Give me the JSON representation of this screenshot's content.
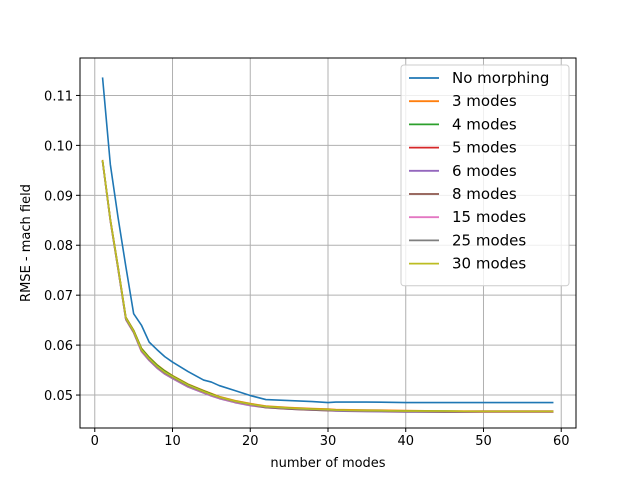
{
  "chart_data": {
    "type": "line",
    "xlabel": "number of modes",
    "ylabel": "RMSE - mach field",
    "xlim": [
      -1.9,
      61.9
    ],
    "ylim": [
      0.0434,
      0.1175
    ],
    "x_ticks": [
      0,
      10,
      20,
      30,
      40,
      50,
      60
    ],
    "y_ticks": [
      0.05,
      0.06,
      0.07,
      0.08,
      0.09,
      0.1,
      0.11
    ],
    "y_tick_labels": [
      "0.05",
      "0.06",
      "0.07",
      "0.08",
      "0.09",
      "0.10",
      "0.11"
    ],
    "grid": true,
    "legend_position": "top-right",
    "x": [
      1,
      2,
      3,
      4,
      5,
      6,
      7,
      8,
      9,
      10,
      12,
      14,
      15,
      16,
      18,
      20,
      22,
      25,
      28,
      30,
      31,
      35,
      40,
      45,
      50,
      55,
      59
    ],
    "series": [
      {
        "name": "No morphing",
        "color": "#1f77b4",
        "values": [
          0.1136,
          0.0962,
          0.0855,
          0.0757,
          0.0663,
          0.064,
          0.0606,
          0.0591,
          0.0577,
          0.0566,
          0.0547,
          0.053,
          0.0526,
          0.0519,
          0.0509,
          0.0499,
          0.0491,
          0.0489,
          0.0487,
          0.0485,
          0.0486,
          0.0486,
          0.0485,
          0.0485,
          0.0485,
          0.0485,
          0.0485
        ]
      },
      {
        "name": "3 modes",
        "color": "#ff7f0e",
        "values": [
          0.0971,
          0.0853,
          0.0757,
          0.0656,
          0.063,
          0.0594,
          0.0576,
          0.0561,
          0.0549,
          0.0539,
          0.0522,
          0.0509,
          0.0503,
          0.0497,
          0.0489,
          0.0483,
          0.0478,
          0.0475,
          0.0473,
          0.0472,
          0.0471,
          0.047,
          0.0469,
          0.0468,
          0.0468,
          0.0468,
          0.0468
        ]
      },
      {
        "name": "4 modes",
        "color": "#2ca02c",
        "values": [
          0.097,
          0.0852,
          0.0756,
          0.0655,
          0.0629,
          0.0593,
          0.0575,
          0.056,
          0.0548,
          0.0538,
          0.0521,
          0.0508,
          0.0502,
          0.0496,
          0.0488,
          0.0482,
          0.0477,
          0.0474,
          0.0472,
          0.0471,
          0.047,
          0.0469,
          0.0468,
          0.0468,
          0.0467,
          0.0467,
          0.0467
        ]
      },
      {
        "name": "5 modes",
        "color": "#d62728",
        "values": [
          0.0969,
          0.0851,
          0.0754,
          0.0653,
          0.0627,
          0.059,
          0.0572,
          0.0557,
          0.0545,
          0.0536,
          0.0519,
          0.0506,
          0.05,
          0.0495,
          0.0487,
          0.0481,
          0.0476,
          0.0473,
          0.0471,
          0.047,
          0.0469,
          0.0468,
          0.0467,
          0.0467,
          0.0466,
          0.0466,
          0.0466
        ]
      },
      {
        "name": "6 modes",
        "color": "#9467bd",
        "values": [
          0.0968,
          0.0849,
          0.0752,
          0.0651,
          0.0625,
          0.0587,
          0.0569,
          0.0554,
          0.0542,
          0.0533,
          0.0516,
          0.0504,
          0.0498,
          0.0493,
          0.0485,
          0.0479,
          0.0475,
          0.0472,
          0.047,
          0.0469,
          0.0468,
          0.0467,
          0.0466,
          0.0466,
          0.0466,
          0.0466,
          0.0466
        ]
      },
      {
        "name": "8 modes",
        "color": "#8c564b",
        "values": [
          0.0968,
          0.0849,
          0.0752,
          0.0651,
          0.0625,
          0.0588,
          0.057,
          0.0555,
          0.0543,
          0.0534,
          0.0517,
          0.0505,
          0.0499,
          0.0494,
          0.0486,
          0.048,
          0.0475,
          0.0472,
          0.047,
          0.0469,
          0.0469,
          0.0468,
          0.0467,
          0.0466,
          0.0466,
          0.0466,
          0.0466
        ]
      },
      {
        "name": "15 modes",
        "color": "#e377c2",
        "values": [
          0.0968,
          0.0849,
          0.0752,
          0.0651,
          0.0625,
          0.0587,
          0.057,
          0.0555,
          0.0543,
          0.0534,
          0.0517,
          0.0505,
          0.0499,
          0.0494,
          0.0486,
          0.048,
          0.0476,
          0.0473,
          0.0471,
          0.047,
          0.0469,
          0.0468,
          0.0467,
          0.0467,
          0.0466,
          0.0466,
          0.0466
        ]
      },
      {
        "name": "25 modes",
        "color": "#7f7f7f",
        "values": [
          0.0969,
          0.085,
          0.0753,
          0.0652,
          0.0626,
          0.0589,
          0.0571,
          0.0556,
          0.0544,
          0.0535,
          0.0518,
          0.0506,
          0.05,
          0.0495,
          0.0487,
          0.0481,
          0.0476,
          0.0473,
          0.0471,
          0.047,
          0.0469,
          0.0468,
          0.0467,
          0.0467,
          0.0467,
          0.0467,
          0.0467
        ]
      },
      {
        "name": "30 modes",
        "color": "#bcbd22",
        "values": [
          0.097,
          0.0851,
          0.0755,
          0.0654,
          0.0628,
          0.0591,
          0.0573,
          0.0558,
          0.0546,
          0.0537,
          0.052,
          0.0507,
          0.0501,
          0.0496,
          0.0488,
          0.0482,
          0.0477,
          0.0474,
          0.0472,
          0.0471,
          0.047,
          0.0469,
          0.0468,
          0.0468,
          0.0467,
          0.0467,
          0.0467
        ]
      }
    ]
  }
}
